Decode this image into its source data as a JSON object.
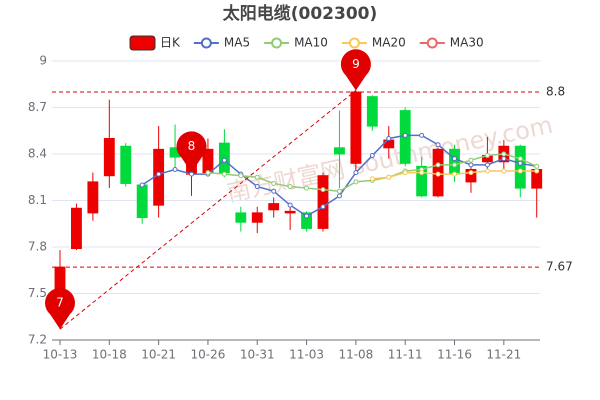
{
  "chart_data": {
    "type": "candlestick",
    "title": "太阳电缆(002300)",
    "watermark": "南方财富网 southmoney.com",
    "categories": [
      "10-13",
      null,
      null,
      "10-18",
      null,
      null,
      "10-21",
      null,
      null,
      "10-26",
      null,
      null,
      "10-31",
      null,
      null,
      "11-03",
      null,
      null,
      "11-08",
      null,
      null,
      "11-11",
      null,
      null,
      "11-16",
      null,
      null,
      "11-21",
      null,
      null
    ],
    "ylim": [
      7.2,
      9
    ],
    "yticks": [
      7.2,
      7.5,
      7.8,
      8.1,
      8.4,
      8.7,
      9
    ],
    "grid": true,
    "candles": {
      "name": "日K",
      "up_color": "#ec0000",
      "down_color": "#00da3c",
      "values": [
        [
          7.48,
          7.67,
          7.27,
          7.78
        ],
        [
          7.79,
          8.05,
          7.78,
          8.08
        ],
        [
          8.02,
          8.22,
          7.97,
          8.28
        ],
        [
          8.26,
          8.5,
          8.18,
          8.75
        ],
        [
          8.45,
          8.21,
          8.19,
          8.47
        ],
        [
          8.2,
          7.99,
          7.95,
          8.21
        ],
        [
          8.07,
          8.43,
          7.99,
          8.58
        ],
        [
          8.44,
          8.38,
          8.3,
          8.59
        ],
        [
          8.27,
          8.33,
          8.13,
          8.47
        ],
        [
          8.28,
          8.43,
          8.27,
          8.5
        ],
        [
          8.47,
          8.28,
          8.25,
          8.56
        ],
        [
          8.02,
          7.96,
          7.9,
          8.06
        ],
        [
          7.96,
          8.02,
          7.89,
          8.06
        ],
        [
          8.04,
          8.08,
          7.99,
          8.12
        ],
        [
          8.02,
          8.03,
          7.91,
          8.06
        ],
        [
          8.02,
          7.92,
          7.9,
          8.03
        ],
        [
          7.92,
          8.26,
          7.9,
          8.28
        ],
        [
          8.44,
          8.4,
          8.18,
          8.68
        ],
        [
          8.34,
          8.8,
          8.28,
          8.81
        ],
        [
          8.77,
          8.58,
          8.55,
          8.78
        ],
        [
          8.44,
          8.49,
          8.37,
          8.58
        ],
        [
          8.68,
          8.34,
          8.32,
          8.7
        ],
        [
          8.32,
          8.13,
          8.12,
          8.38
        ],
        [
          8.13,
          8.43,
          8.12,
          8.44
        ],
        [
          8.43,
          8.27,
          8.22,
          8.46
        ],
        [
          8.22,
          8.3,
          8.15,
          8.32
        ],
        [
          8.35,
          8.39,
          8.3,
          8.51
        ],
        [
          8.35,
          8.45,
          8.3,
          8.49
        ],
        [
          8.45,
          8.18,
          8.12,
          8.46
        ],
        [
          8.18,
          8.3,
          7.99,
          8.31
        ]
      ]
    },
    "series": [
      {
        "name": "MA5",
        "color": "#5470c6",
        "values": [
          null,
          null,
          null,
          null,
          null,
          8.2,
          8.27,
          8.3,
          8.27,
          8.27,
          8.36,
          8.27,
          8.19,
          8.16,
          8.07,
          8.0,
          8.06,
          8.13,
          8.28,
          8.39,
          8.5,
          8.52,
          8.52,
          8.46,
          8.37,
          8.33,
          8.33,
          8.37,
          8.34,
          8.32
        ]
      },
      {
        "name": "MA10",
        "color": "#91cc75",
        "values": [
          null,
          null,
          null,
          null,
          null,
          null,
          null,
          null,
          null,
          8.28,
          8.27,
          8.26,
          8.25,
          8.21,
          8.19,
          8.18,
          8.17,
          8.16,
          8.22,
          8.23,
          8.25,
          8.29,
          8.3,
          8.33,
          8.33,
          8.36,
          8.39,
          8.4,
          8.37,
          8.32
        ]
      },
      {
        "name": "MA20",
        "color": "#fac858",
        "values": [
          null,
          null,
          null,
          null,
          null,
          null,
          null,
          null,
          null,
          null,
          null,
          null,
          null,
          null,
          null,
          null,
          null,
          null,
          null,
          8.24,
          8.25,
          8.28,
          8.28,
          8.27,
          8.27,
          8.28,
          8.29,
          8.29,
          8.29,
          8.29
        ]
      },
      {
        "name": "MA30",
        "color": "#ee6666",
        "values": [
          null,
          null,
          null,
          null,
          null,
          null,
          null,
          null,
          null,
          null,
          null,
          null,
          null,
          null,
          null,
          null,
          null,
          null,
          null,
          null,
          null,
          null,
          null,
          null,
          null,
          null,
          null,
          null,
          null,
          null
        ]
      }
    ],
    "reference_lines": [
      {
        "value": 8.8,
        "label": "8.8"
      },
      {
        "value": 7.67,
        "label": "7.67"
      }
    ],
    "annotations": [
      {
        "label": "7",
        "index": 0,
        "value": 7.27
      },
      {
        "label": "8",
        "index": 8,
        "value": 8.28
      },
      {
        "label": "9",
        "index": 18,
        "value": 8.81
      }
    ]
  }
}
